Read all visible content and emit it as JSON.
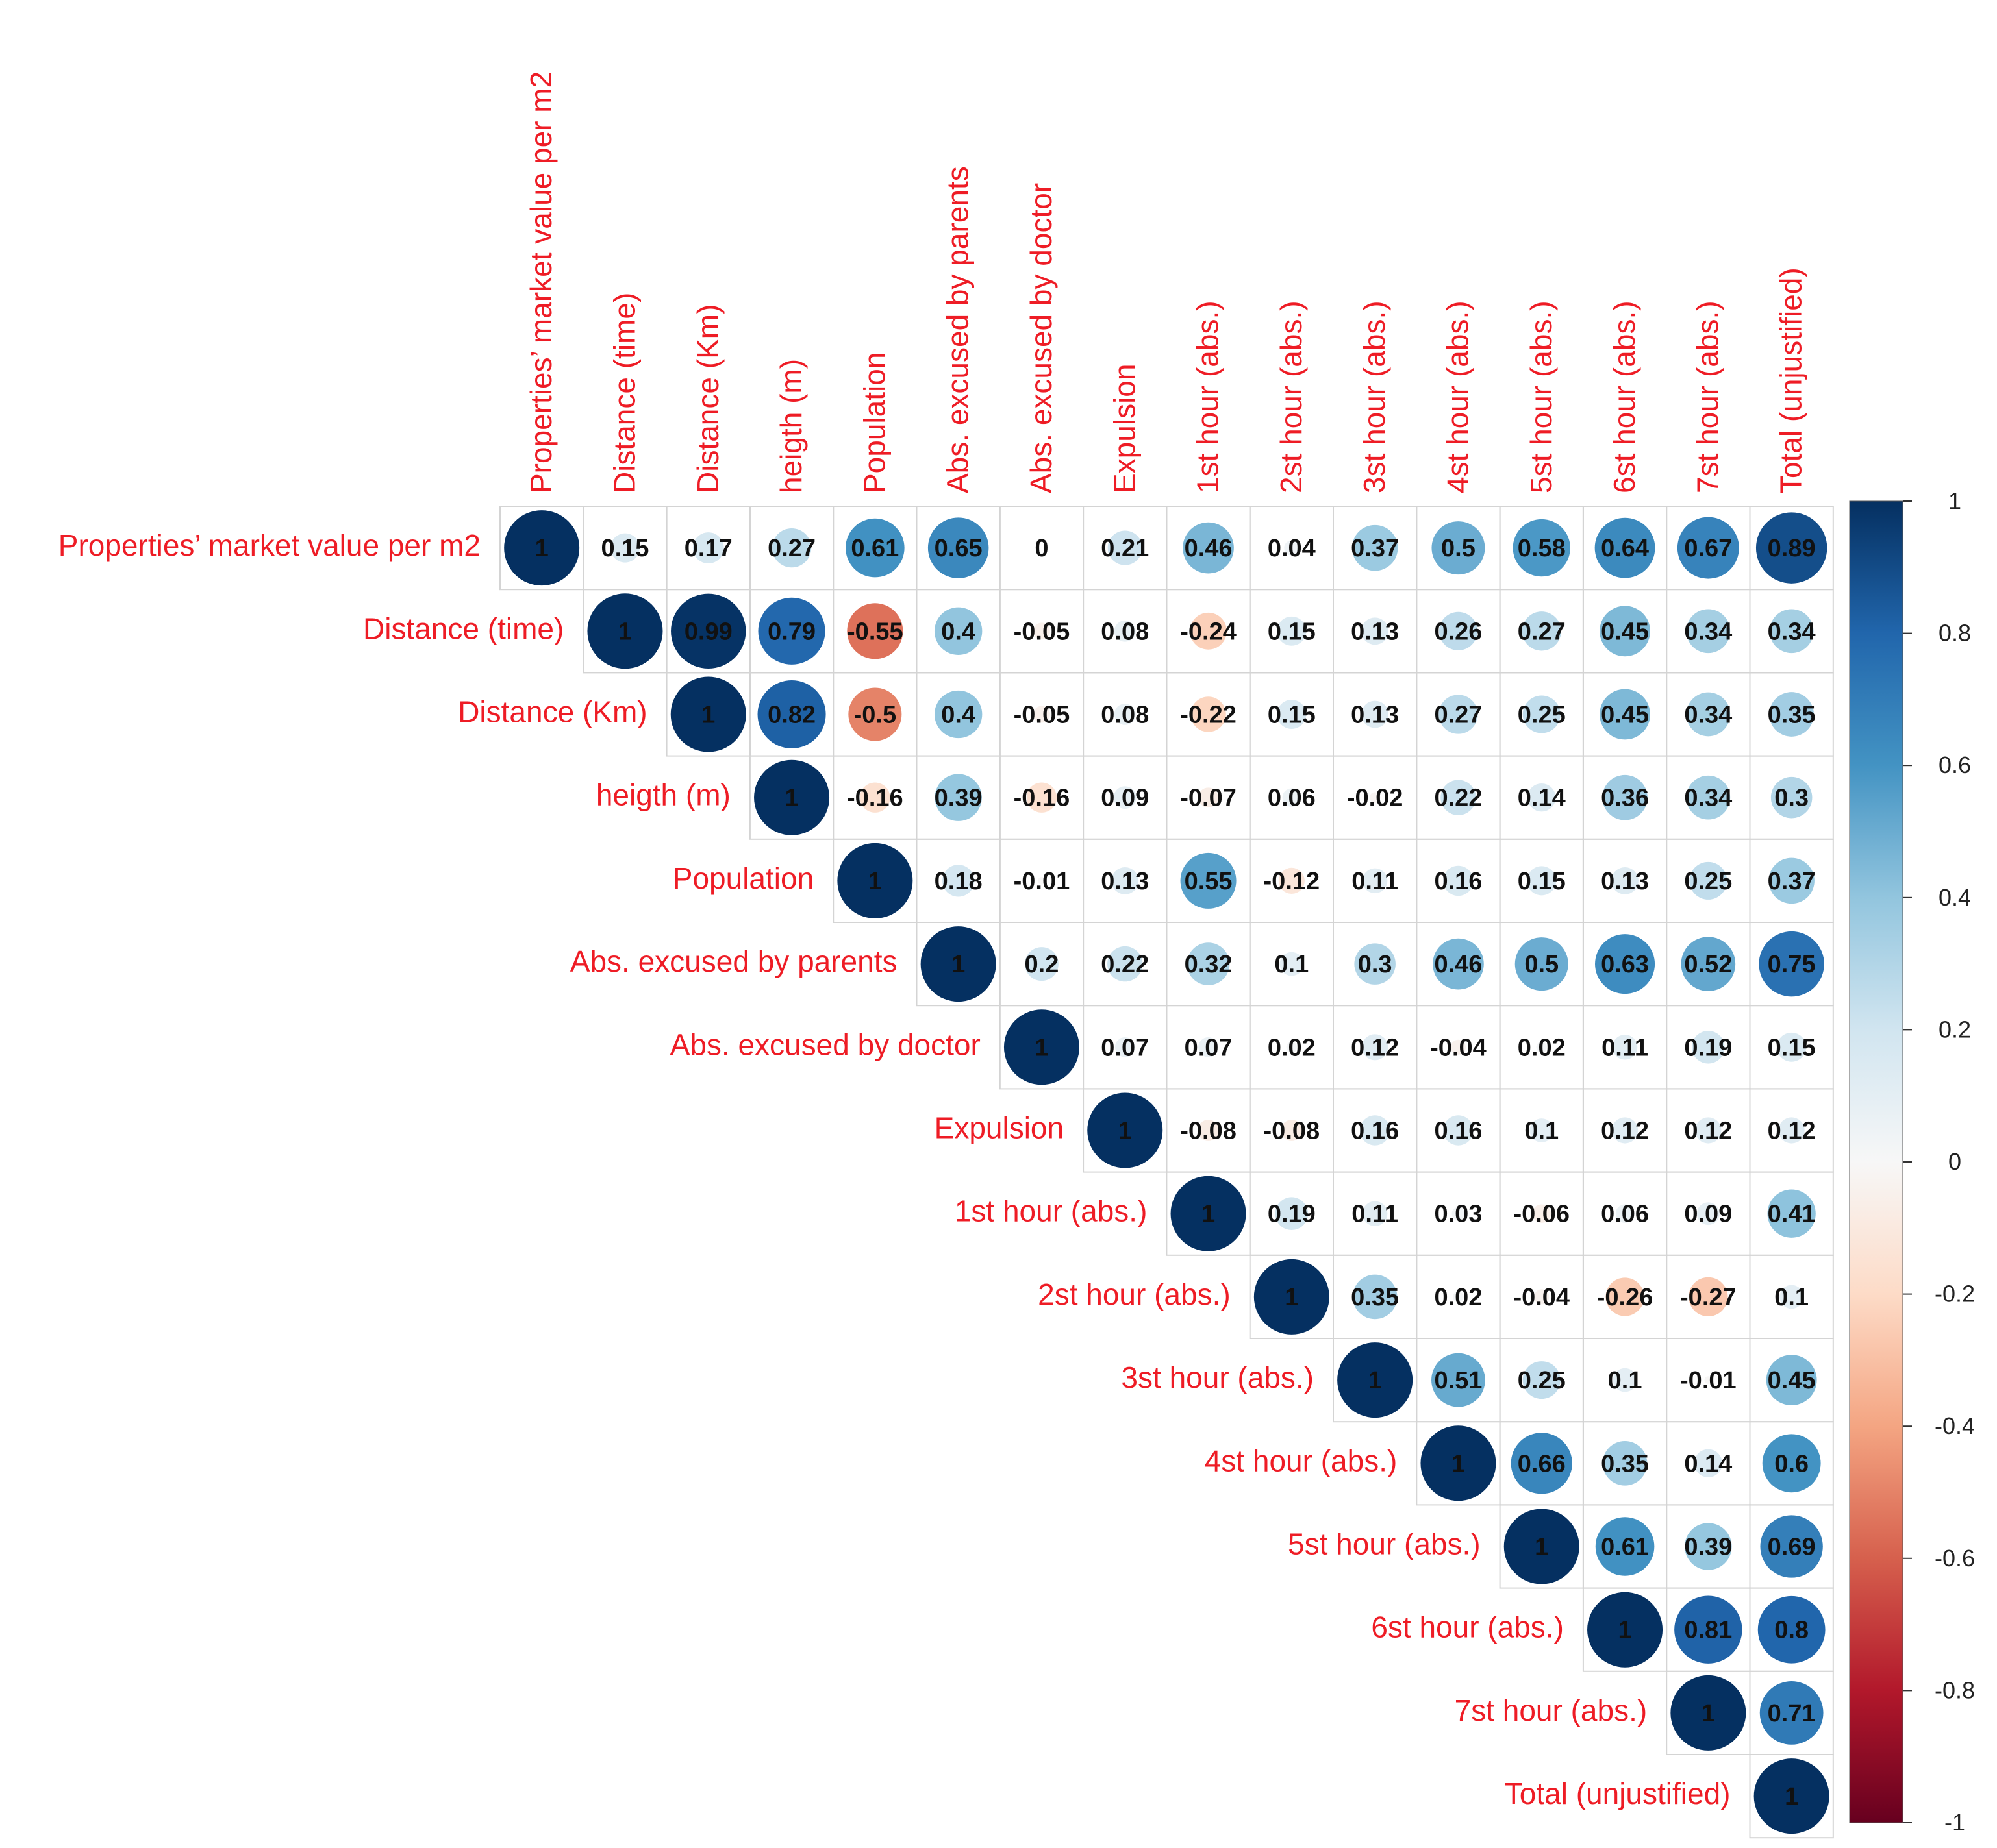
{
  "chart_data": {
    "type": "heatmap",
    "style": "upper-triangle correlation matrix (circle size and color encode r)",
    "variables": [
      "Properties’ market value per m2",
      "Distance  (time)",
      "Distance (Km)",
      "heigth (m)",
      "Population",
      "Abs. excused by parents",
      "Abs. excused by doctor",
      "Expulsion",
      "1st hour (abs.)",
      "2st hour (abs.)",
      "3st hour (abs.)",
      "4st hour (abs.)",
      "5st hour (abs.)",
      "6st hour (abs.)",
      "7st hour (abs.)",
      "Total (unjustified)"
    ],
    "upper_triangle_rows": [
      [
        "1",
        "0.15",
        "0.17",
        "0.27",
        "0.61",
        "0.65",
        "0",
        "0.21",
        "0.46",
        "0.04",
        "0.37",
        "0.5",
        "0.58",
        "0.64",
        "0.67",
        "0.89"
      ],
      [
        "1",
        "0.99",
        "0.79",
        "-0.55",
        "0.4",
        "-0.05",
        "0.08",
        "-0.24",
        "0.15",
        "0.13",
        "0.26",
        "0.27",
        "0.45",
        "0.34",
        "0.34"
      ],
      [
        "1",
        "0.82",
        "-0.5",
        "0.4",
        "-0.05",
        "0.08",
        "-0.22",
        "0.15",
        "0.13",
        "0.27",
        "0.25",
        "0.45",
        "0.34",
        "0.35"
      ],
      [
        "1",
        "-0.16",
        "0.39",
        "-0.16",
        "0.09",
        "-0.07",
        "0.06",
        "-0.02",
        "0.22",
        "0.14",
        "0.36",
        "0.34",
        "0.3"
      ],
      [
        "1",
        "0.18",
        "-0.01",
        "0.13",
        "0.55",
        "-0.12",
        "0.11",
        "0.16",
        "0.15",
        "0.13",
        "0.25",
        "0.37"
      ],
      [
        "1",
        "0.2",
        "0.22",
        "0.32",
        "0.1",
        "0.3",
        "0.46",
        "0.5",
        "0.63",
        "0.52",
        "0.75"
      ],
      [
        "1",
        "0.07",
        "0.07",
        "0.02",
        "0.12",
        "-0.04",
        "0.02",
        "0.11",
        "0.19",
        "0.15"
      ],
      [
        "1",
        "-0.08",
        "-0.08",
        "0.16",
        "0.16",
        "0.1",
        "0.12",
        "0.12",
        "0.12"
      ],
      [
        "1",
        "0.19",
        "0.11",
        "0.03",
        "-0.06",
        "0.06",
        "0.09",
        "0.41"
      ],
      [
        "1",
        "0.35",
        "0.02",
        "-0.04",
        "-0.26",
        "-0.27",
        "0.1"
      ],
      [
        "1",
        "0.51",
        "0.25",
        "0.1",
        "-0.01",
        "0.45"
      ],
      [
        "1",
        "0.66",
        "0.35",
        "0.14",
        "0.6"
      ],
      [
        "1",
        "0.61",
        "0.39",
        "0.69"
      ],
      [
        "1",
        "0.81",
        "0.8"
      ],
      [
        "1",
        "0.71"
      ],
      [
        "1"
      ]
    ],
    "colorbar": {
      "range": [
        -1,
        1
      ],
      "ticks": [
        "1",
        "0.8",
        "0.6",
        "0.4",
        "0.2",
        "0",
        "-0.2",
        "-0.4",
        "-0.6",
        "-0.8",
        "-1"
      ]
    },
    "colors": {
      "label_text": "#ee1c25",
      "strong_positive": "#053061",
      "positive": "#4393c3",
      "neutral": "#f7f7f7",
      "negative": "#d6604d",
      "strong_negative": "#67001f",
      "grid": "#d4d4d4"
    }
  }
}
